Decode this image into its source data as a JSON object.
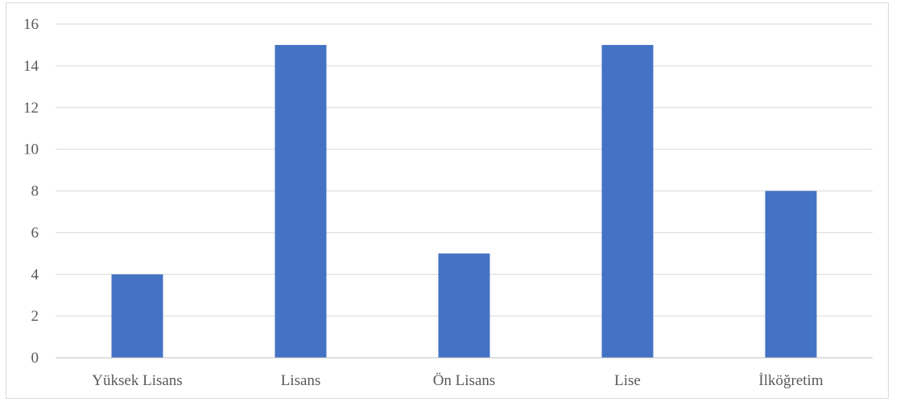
{
  "chart_data": {
    "type": "bar",
    "title": "",
    "xlabel": "",
    "ylabel": "",
    "categories": [
      "Yüksek Lisans",
      "Lisans",
      "Ön Lisans",
      "Lise",
      "İlköğretim"
    ],
    "values": [
      4,
      15,
      5,
      15,
      8
    ],
    "ylim": [
      0,
      16
    ],
    "yticks": [
      "0",
      "2",
      "4",
      "6",
      "8",
      "10",
      "12",
      "14",
      "16"
    ],
    "grid": true,
    "legend": "none",
    "colors": {
      "bar": "#4472c4",
      "grid": "#d9d9d9",
      "axis": "#bfbfbf",
      "tick_text": "#595959"
    }
  }
}
